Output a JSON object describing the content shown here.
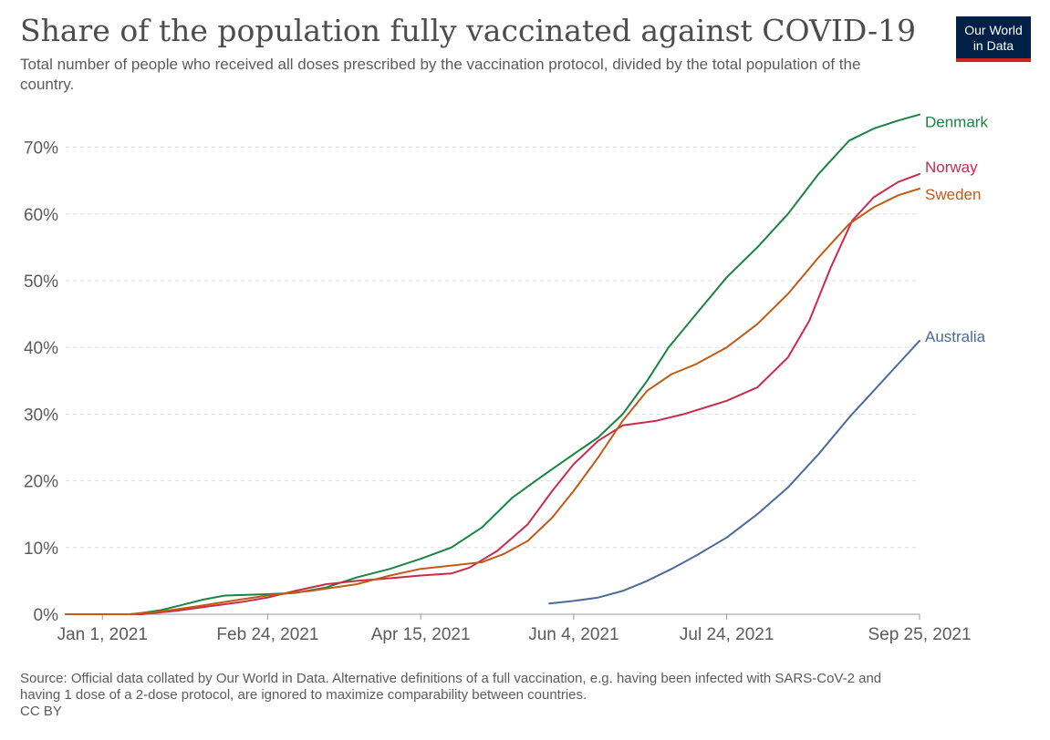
{
  "header": {
    "title": "Share of the population fully vaccinated against COVID-19",
    "subtitle": "Total number of people who received all doses prescribed by the vaccination protocol, divided by the total population of the country."
  },
  "logo": {
    "line1": "Our World",
    "line2": "in Data"
  },
  "footer": {
    "source_line1": "Source: Official data collated by Our World in Data. Alternative definitions of a full vaccination, e.g. having been infected with SARS-CoV-2 and",
    "source_line2": "having 1 dose of a 2-dose protocol, are ignored to maximize comparability between countries.",
    "license": "CC BY"
  },
  "colors": {
    "text": "#5b5b5b",
    "grid": "#dddddd",
    "axis": "#999999",
    "logo_bg": "#002147",
    "logo_accent": "#ce261e"
  },
  "chart_data": {
    "type": "line",
    "title": "Share of the population fully vaccinated against COVID-19",
    "xlabel": "",
    "ylabel": "",
    "x_start": "2021-01-01",
    "x_end": "2021-09-25",
    "ylim": [
      0,
      75
    ],
    "y_ticks": [
      0,
      10,
      20,
      30,
      40,
      50,
      60,
      70
    ],
    "y_tick_labels": [
      "0%",
      "10%",
      "20%",
      "30%",
      "40%",
      "50%",
      "60%",
      "70%"
    ],
    "x_ticks": [
      "2021-01-01",
      "2021-02-24",
      "2021-04-15",
      "2021-06-04",
      "2021-07-24",
      "2021-09-25"
    ],
    "x_tick_labels": [
      "Jan 1, 2021",
      "Feb 24, 2021",
      "Apr 15, 2021",
      "Jun 4, 2021",
      "Jul 24, 2021",
      "Sep 25, 2021"
    ],
    "grid": true,
    "legend": "inline labels at line ends",
    "series": [
      {
        "name": "Denmark",
        "color": "#1a8443",
        "points": [
          [
            "2020-12-20",
            0
          ],
          [
            "2021-01-10",
            0
          ],
          [
            "2021-01-14",
            0.2
          ],
          [
            "2021-01-20",
            0.6
          ],
          [
            "2021-01-27",
            1.4
          ],
          [
            "2021-02-03",
            2.2
          ],
          [
            "2021-02-10",
            2.8
          ],
          [
            "2021-02-24",
            3.0
          ],
          [
            "2021-03-05",
            3.2
          ],
          [
            "2021-03-15",
            4.0
          ],
          [
            "2021-03-25",
            5.5
          ],
          [
            "2021-04-05",
            6.8
          ],
          [
            "2021-04-15",
            8.3
          ],
          [
            "2021-04-25",
            10.0
          ],
          [
            "2021-05-05",
            13.0
          ],
          [
            "2021-05-15",
            17.5
          ],
          [
            "2021-05-25",
            20.8
          ],
          [
            "2021-06-04",
            24.0
          ],
          [
            "2021-06-12",
            26.5
          ],
          [
            "2021-06-20",
            30.0
          ],
          [
            "2021-06-28",
            35.0
          ],
          [
            "2021-07-05",
            40.0
          ],
          [
            "2021-07-14",
            45.0
          ],
          [
            "2021-07-24",
            50.5
          ],
          [
            "2021-08-03",
            55.0
          ],
          [
            "2021-08-13",
            60.0
          ],
          [
            "2021-08-23",
            66.0
          ],
          [
            "2021-09-02",
            71.0
          ],
          [
            "2021-09-10",
            72.8
          ],
          [
            "2021-09-18",
            74.0
          ],
          [
            "2021-09-25",
            74.9
          ]
        ]
      },
      {
        "name": "Norway",
        "color": "#ca2b4b",
        "points": [
          [
            "2020-12-20",
            0
          ],
          [
            "2021-01-14",
            0
          ],
          [
            "2021-01-25",
            0.5
          ],
          [
            "2021-02-05",
            1.2
          ],
          [
            "2021-02-15",
            1.8
          ],
          [
            "2021-02-24",
            2.5
          ],
          [
            "2021-03-05",
            3.5
          ],
          [
            "2021-03-15",
            4.5
          ],
          [
            "2021-03-25",
            5.0
          ],
          [
            "2021-04-05",
            5.4
          ],
          [
            "2021-04-15",
            5.8
          ],
          [
            "2021-04-25",
            6.1
          ],
          [
            "2021-05-01",
            7.0
          ],
          [
            "2021-05-10",
            9.5
          ],
          [
            "2021-05-20",
            13.5
          ],
          [
            "2021-05-28",
            18.5
          ],
          [
            "2021-06-04",
            22.5
          ],
          [
            "2021-06-12",
            26.0
          ],
          [
            "2021-06-20",
            28.3
          ],
          [
            "2021-07-01",
            29.0
          ],
          [
            "2021-07-10",
            30.0
          ],
          [
            "2021-07-24",
            32.0
          ],
          [
            "2021-08-03",
            34.0
          ],
          [
            "2021-08-13",
            38.5
          ],
          [
            "2021-08-20",
            44.0
          ],
          [
            "2021-08-27",
            52.0
          ],
          [
            "2021-09-03",
            59.0
          ],
          [
            "2021-09-10",
            62.5
          ],
          [
            "2021-09-18",
            64.8
          ],
          [
            "2021-09-25",
            66.0
          ]
        ]
      },
      {
        "name": "Sweden",
        "color": "#c15b16",
        "points": [
          [
            "2020-12-20",
            0
          ],
          [
            "2021-01-10",
            0
          ],
          [
            "2021-01-20",
            0.4
          ],
          [
            "2021-02-01",
            1.2
          ],
          [
            "2021-02-15",
            2.2
          ],
          [
            "2021-02-24",
            2.8
          ],
          [
            "2021-03-10",
            3.5
          ],
          [
            "2021-03-25",
            4.5
          ],
          [
            "2021-04-05",
            5.8
          ],
          [
            "2021-04-15",
            6.8
          ],
          [
            "2021-04-25",
            7.3
          ],
          [
            "2021-05-05",
            7.8
          ],
          [
            "2021-05-12",
            9.0
          ],
          [
            "2021-05-20",
            11.0
          ],
          [
            "2021-05-28",
            14.5
          ],
          [
            "2021-06-04",
            18.5
          ],
          [
            "2021-06-12",
            23.5
          ],
          [
            "2021-06-20",
            29.0
          ],
          [
            "2021-06-28",
            33.5
          ],
          [
            "2021-07-06",
            36.0
          ],
          [
            "2021-07-14",
            37.5
          ],
          [
            "2021-07-24",
            40.0
          ],
          [
            "2021-08-03",
            43.5
          ],
          [
            "2021-08-13",
            48.0
          ],
          [
            "2021-08-23",
            53.5
          ],
          [
            "2021-09-02",
            58.5
          ],
          [
            "2021-09-10",
            61.0
          ],
          [
            "2021-09-18",
            62.8
          ],
          [
            "2021-09-25",
            63.8
          ]
        ]
      },
      {
        "name": "Australia",
        "color": "#4c6a9c",
        "points": [
          [
            "2021-05-27",
            1.6
          ],
          [
            "2021-06-04",
            2.0
          ],
          [
            "2021-06-12",
            2.5
          ],
          [
            "2021-06-20",
            3.5
          ],
          [
            "2021-06-28",
            5.0
          ],
          [
            "2021-07-06",
            6.8
          ],
          [
            "2021-07-14",
            8.8
          ],
          [
            "2021-07-24",
            11.5
          ],
          [
            "2021-08-03",
            15.0
          ],
          [
            "2021-08-13",
            19.0
          ],
          [
            "2021-08-23",
            24.0
          ],
          [
            "2021-09-02",
            29.5
          ],
          [
            "2021-09-10",
            33.5
          ],
          [
            "2021-09-18",
            37.5
          ],
          [
            "2021-09-25",
            41.0
          ]
        ]
      }
    ]
  }
}
